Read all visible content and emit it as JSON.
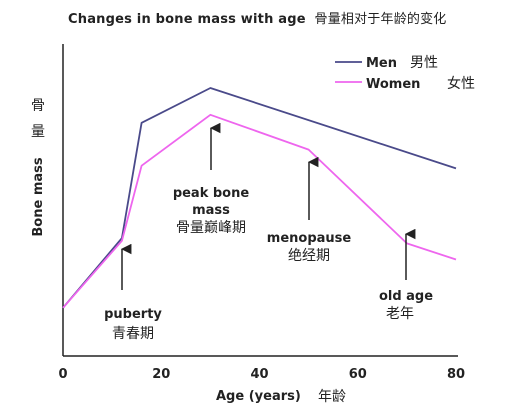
{
  "chart_data": {
    "type": "line",
    "title": "Changes in bone mass with age",
    "title_zh": "骨量相对于年龄的变化",
    "xlabel": "Age (years)",
    "xlabel_zh": "年龄",
    "ylabel": "Bone mass",
    "ylabel_zh": "骨量",
    "xlim": [
      0,
      80
    ],
    "ylim": [
      0,
      100
    ],
    "xticks": [
      "0",
      "20",
      "40",
      "60",
      "80"
    ],
    "grid": false,
    "legend_position": "top-right",
    "series": [
      {
        "name": "Men",
        "name_zh": "男性",
        "color": "#4a4a8a",
        "x": [
          0,
          12,
          16,
          30,
          80
        ],
        "y": [
          18,
          44,
          87,
          100,
          70
        ]
      },
      {
        "name": "Women",
        "name_zh": "女性",
        "color": "#ee66ee",
        "x": [
          0,
          12,
          16,
          30,
          50,
          70,
          80
        ],
        "y": [
          18,
          43,
          71,
          90,
          77,
          42,
          36
        ]
      }
    ],
    "annotations": [
      {
        "label": "puberty",
        "label_zh": "青春期",
        "x": 12
      },
      {
        "label": "peak bone",
        "label2": "mass",
        "label_zh": "骨量巅峰期",
        "x": 30
      },
      {
        "label": "menopause",
        "label_zh": "绝经期",
        "x": 50
      },
      {
        "label": "old age",
        "label_zh": "老年",
        "x": 70
      }
    ]
  }
}
